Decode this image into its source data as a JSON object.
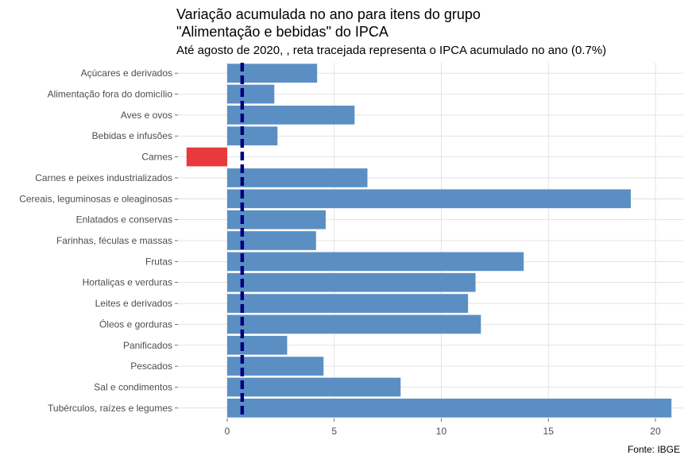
{
  "chart_data": {
    "type": "bar",
    "orientation": "horizontal",
    "title_line1": "Variação acumulada no ano para itens do grupo",
    "title_line2": "\"Alimentação e bebidas\" do IPCA",
    "subtitle": "Até agosto de 2020, , reta tracejada representa o IPCA acumulado no ano (0.7%)",
    "caption": "Fonte: IBGE",
    "categories": [
      "Açúcares e derivados",
      "Alimentação fora do domicílio",
      "Aves e ovos",
      "Bebidas e infusões",
      "Carnes",
      "Carnes e peixes industrializados",
      "Cereais, leguminosas e oleaginosas",
      "Enlatados e conservas",
      "Farinhas, féculas e massas",
      "Frutas",
      "Hortaliças e verduras",
      "Leites e derivados",
      "Óleos e gorduras",
      "Panificados",
      "Pescados",
      "Sal e condimentos",
      "Tubérculos, raízes e legumes"
    ],
    "values": [
      4.2,
      2.2,
      5.95,
      2.35,
      -1.9,
      6.55,
      18.85,
      4.6,
      4.15,
      13.85,
      11.6,
      11.25,
      11.85,
      2.8,
      4.5,
      8.1,
      20.75
    ],
    "reference_value": 0.7,
    "reference_label": "IPCA acumulado no ano (0.7%)",
    "xlim": [
      -2.3,
      21.3
    ],
    "xticks": [
      0,
      5,
      10,
      15,
      20
    ],
    "xtick_labels": [
      "0",
      "5",
      "10",
      "15",
      "20"
    ],
    "xlabel": "",
    "ylabel": "",
    "grid": true,
    "legend": "none",
    "colors": {
      "positive": "#5b8fc3",
      "negative": "#e8393c",
      "reference": "#00007f",
      "grid": "#dcdcdc",
      "tick": "#4d4d4d"
    }
  }
}
